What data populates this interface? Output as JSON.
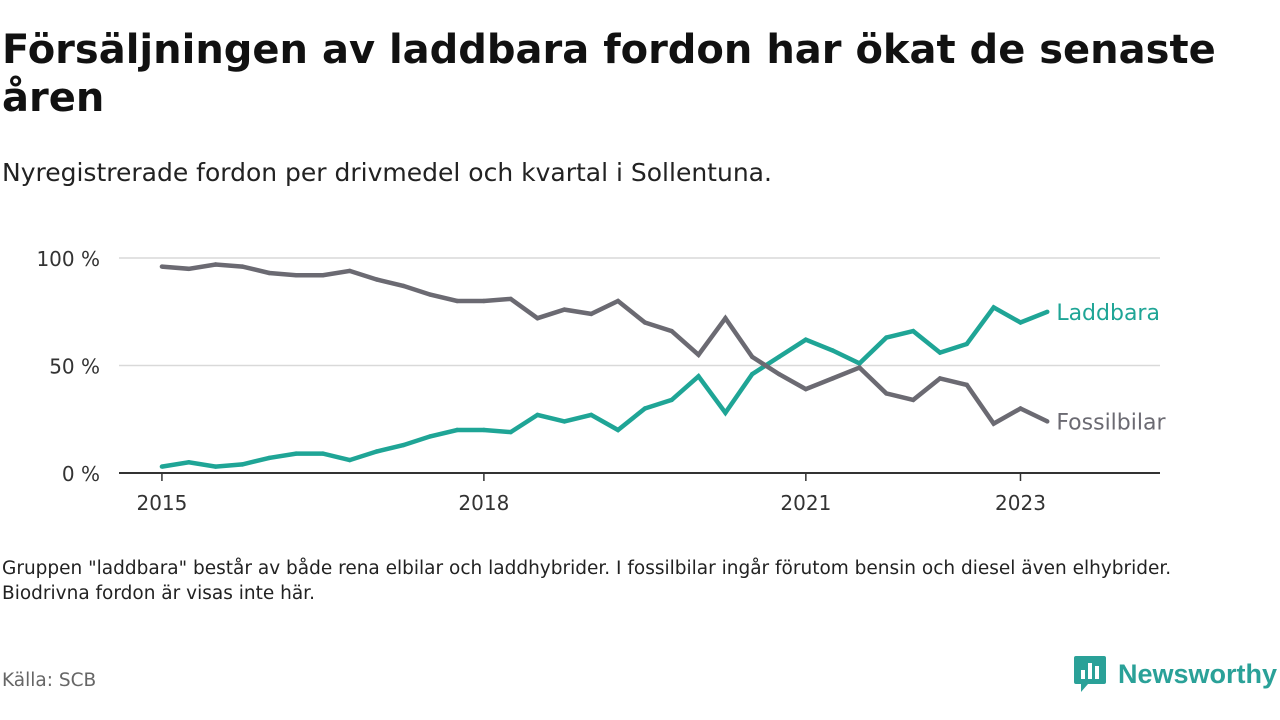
{
  "title": "Försäljningen av laddbara fordon har ökat de senaste åren",
  "subtitle": "Nyregistrerade fordon per drivmedel och kvartal i Sollentuna.",
  "note": "Gruppen \"laddbara\" består av både rena elbilar och laddhybrider. I fossilbilar ingår förutom bensin och diesel även elhybrider. Biodrivna fordon är visas inte här.",
  "source": "Källa: SCB",
  "brand": "Newsworthy",
  "colors": {
    "laddbara": "#1fa596",
    "fossil": "#6b6a72",
    "grid": "#d9d9d9",
    "axis": "#333333",
    "brand": "#2aa198"
  },
  "chart_data": {
    "type": "line",
    "title": "Försäljningen av laddbara fordon har ökat de senaste åren",
    "xlabel": "",
    "ylabel": "",
    "x_start": 2015.0,
    "x_step": 0.25,
    "xlim": [
      2014.6,
      2024.3
    ],
    "ylim": [
      0,
      100
    ],
    "y_ticks": [
      0,
      50,
      100
    ],
    "y_tick_labels": [
      "0 %",
      "50 %",
      "100 %"
    ],
    "x_ticks": [
      2015,
      2018,
      2021,
      2023
    ],
    "x_tick_labels": [
      "2015",
      "2018",
      "2021",
      "2023"
    ],
    "grid": true,
    "series": [
      {
        "name": "Laddbara",
        "color_key": "laddbara",
        "values": [
          3,
          5,
          3,
          4,
          7,
          9,
          9,
          6,
          10,
          13,
          17,
          20,
          20,
          19,
          27,
          24,
          27,
          20,
          30,
          34,
          45,
          28,
          46,
          54,
          62,
          57,
          51,
          63,
          66,
          56,
          60,
          77,
          70,
          75
        ]
      },
      {
        "name": "Fossilbilar",
        "color_key": "fossil",
        "values": [
          96,
          95,
          97,
          96,
          93,
          92,
          92,
          94,
          90,
          87,
          83,
          80,
          80,
          81,
          72,
          76,
          74,
          80,
          70,
          66,
          55,
          72,
          54,
          46,
          39,
          44,
          49,
          37,
          34,
          44,
          41,
          23,
          30,
          24
        ]
      }
    ]
  }
}
